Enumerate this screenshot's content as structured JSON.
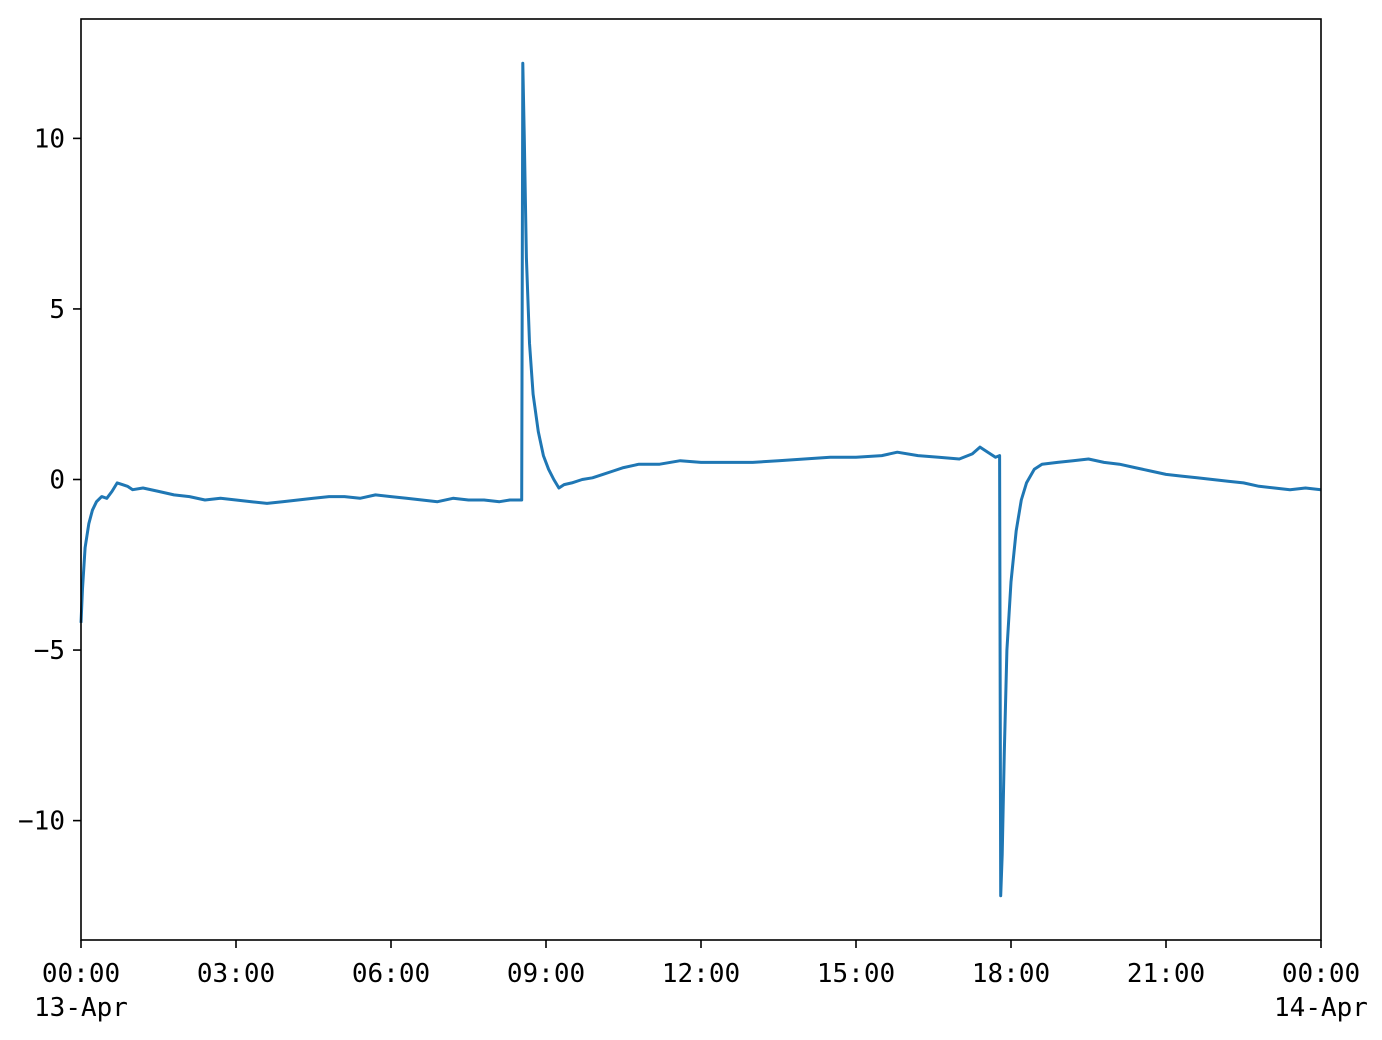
{
  "chart_data": {
    "type": "line",
    "title": "",
    "xlabel": "",
    "ylabel": "",
    "x_unit": "hours",
    "xlim": [
      0,
      24
    ],
    "ylim": [
      -13.5,
      13.5
    ],
    "grid": false,
    "x_ticks": [
      {
        "value": 0,
        "label": "00:00",
        "sublabel": "13-Apr"
      },
      {
        "value": 3,
        "label": "03:00",
        "sublabel": ""
      },
      {
        "value": 6,
        "label": "06:00",
        "sublabel": ""
      },
      {
        "value": 9,
        "label": "09:00",
        "sublabel": ""
      },
      {
        "value": 12,
        "label": "12:00",
        "sublabel": ""
      },
      {
        "value": 15,
        "label": "15:00",
        "sublabel": ""
      },
      {
        "value": 18,
        "label": "18:00",
        "sublabel": ""
      },
      {
        "value": 21,
        "label": "21:00",
        "sublabel": ""
      },
      {
        "value": 24,
        "label": "00:00",
        "sublabel": "14-Apr"
      }
    ],
    "y_ticks": [
      {
        "value": 10,
        "label": "10"
      },
      {
        "value": 5,
        "label": "5"
      },
      {
        "value": 0,
        "label": "0"
      },
      {
        "value": -5,
        "label": "−5"
      },
      {
        "value": -10,
        "label": "−10"
      }
    ],
    "series": [
      {
        "color": "#1f77b4",
        "points": [
          [
            0.0,
            -4.2
          ],
          [
            0.03,
            -3.2
          ],
          [
            0.08,
            -2.0
          ],
          [
            0.15,
            -1.3
          ],
          [
            0.22,
            -0.9
          ],
          [
            0.3,
            -0.65
          ],
          [
            0.4,
            -0.5
          ],
          [
            0.5,
            -0.55
          ],
          [
            0.6,
            -0.35
          ],
          [
            0.7,
            -0.1
          ],
          [
            0.8,
            -0.15
          ],
          [
            0.9,
            -0.2
          ],
          [
            1.0,
            -0.3
          ],
          [
            1.2,
            -0.25
          ],
          [
            1.5,
            -0.35
          ],
          [
            1.8,
            -0.45
          ],
          [
            2.1,
            -0.5
          ],
          [
            2.4,
            -0.6
          ],
          [
            2.7,
            -0.55
          ],
          [
            3.0,
            -0.6
          ],
          [
            3.3,
            -0.65
          ],
          [
            3.6,
            -0.7
          ],
          [
            3.9,
            -0.65
          ],
          [
            4.2,
            -0.6
          ],
          [
            4.5,
            -0.55
          ],
          [
            4.8,
            -0.5
          ],
          [
            5.1,
            -0.5
          ],
          [
            5.4,
            -0.55
          ],
          [
            5.7,
            -0.45
          ],
          [
            6.0,
            -0.5
          ],
          [
            6.3,
            -0.55
          ],
          [
            6.6,
            -0.6
          ],
          [
            6.9,
            -0.65
          ],
          [
            7.2,
            -0.55
          ],
          [
            7.5,
            -0.6
          ],
          [
            7.8,
            -0.6
          ],
          [
            8.1,
            -0.65
          ],
          [
            8.3,
            -0.6
          ],
          [
            8.53,
            -0.6
          ],
          [
            8.55,
            12.2
          ],
          [
            8.58,
            10.0
          ],
          [
            8.62,
            6.5
          ],
          [
            8.68,
            4.0
          ],
          [
            8.75,
            2.5
          ],
          [
            8.85,
            1.4
          ],
          [
            8.95,
            0.7
          ],
          [
            9.05,
            0.3
          ],
          [
            9.15,
            0.0
          ],
          [
            9.25,
            -0.25
          ],
          [
            9.35,
            -0.15
          ],
          [
            9.5,
            -0.1
          ],
          [
            9.7,
            0.0
          ],
          [
            9.9,
            0.05
          ],
          [
            10.1,
            0.15
          ],
          [
            10.3,
            0.25
          ],
          [
            10.5,
            0.35
          ],
          [
            10.8,
            0.45
          ],
          [
            11.2,
            0.45
          ],
          [
            11.6,
            0.55
          ],
          [
            12.0,
            0.5
          ],
          [
            12.5,
            0.5
          ],
          [
            13.0,
            0.5
          ],
          [
            13.5,
            0.55
          ],
          [
            14.0,
            0.6
          ],
          [
            14.5,
            0.65
          ],
          [
            15.0,
            0.65
          ],
          [
            15.5,
            0.7
          ],
          [
            15.8,
            0.8
          ],
          [
            16.2,
            0.7
          ],
          [
            16.6,
            0.65
          ],
          [
            17.0,
            0.6
          ],
          [
            17.25,
            0.75
          ],
          [
            17.4,
            0.95
          ],
          [
            17.55,
            0.8
          ],
          [
            17.7,
            0.65
          ],
          [
            17.78,
            0.7
          ],
          [
            17.8,
            -12.2
          ],
          [
            17.83,
            -11.0
          ],
          [
            17.87,
            -8.0
          ],
          [
            17.92,
            -5.0
          ],
          [
            18.0,
            -3.0
          ],
          [
            18.1,
            -1.5
          ],
          [
            18.2,
            -0.6
          ],
          [
            18.3,
            -0.1
          ],
          [
            18.45,
            0.3
          ],
          [
            18.6,
            0.45
          ],
          [
            18.9,
            0.5
          ],
          [
            19.2,
            0.55
          ],
          [
            19.5,
            0.6
          ],
          [
            19.8,
            0.5
          ],
          [
            20.1,
            0.45
          ],
          [
            20.4,
            0.35
          ],
          [
            20.7,
            0.25
          ],
          [
            21.0,
            0.15
          ],
          [
            21.3,
            0.1
          ],
          [
            21.6,
            0.05
          ],
          [
            21.9,
            0.0
          ],
          [
            22.2,
            -0.05
          ],
          [
            22.5,
            -0.1
          ],
          [
            22.8,
            -0.2
          ],
          [
            23.1,
            -0.25
          ],
          [
            23.4,
            -0.3
          ],
          [
            23.7,
            -0.25
          ],
          [
            24.0,
            -0.3
          ]
        ]
      }
    ]
  }
}
